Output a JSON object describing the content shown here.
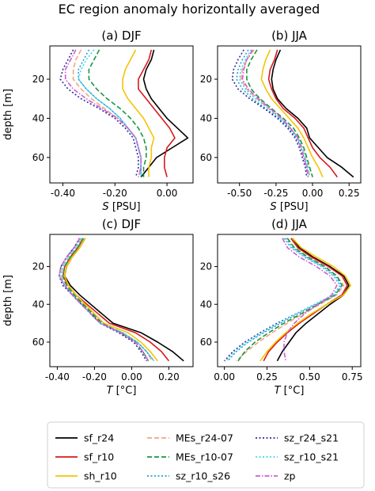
{
  "figure_title": "EC region anomaly horizontally averaged",
  "legend": {
    "entries": [
      {
        "label": "sf_r24",
        "color": "#000000",
        "dash": "solid"
      },
      {
        "label": "sf_r10",
        "color": "#d7191c",
        "dash": "solid"
      },
      {
        "label": "sh_r10",
        "color": "#f5c400",
        "dash": "solid"
      },
      {
        "label": "MEs_r24-07",
        "color": "#f4a582",
        "dash": "dashed"
      },
      {
        "label": "MEs_r10-07",
        "color": "#1a9641",
        "dash": "dashed"
      },
      {
        "label": "sz_r10_s26",
        "color": "#2b9bd6",
        "dash": "dotted"
      },
      {
        "label": "sz_r24_s21",
        "color": "#2c2c9c",
        "dash": "dotted"
      },
      {
        "label": "sz_r10_s21",
        "color": "#3fd9e6",
        "dash": "dotted"
      },
      {
        "label": "zp",
        "color": "#d05bd5",
        "dash": "dashdot"
      }
    ]
  },
  "chart_data": [
    {
      "id": "a",
      "type": "line",
      "title": "(a) DJF",
      "xlabel_italic": "S",
      "xlabel_unit": " [PSU]",
      "ylabel": "depth [m]",
      "xlim": [
        -0.45,
        0.1
      ],
      "ylim": [
        73,
        3
      ],
      "xticks": [
        -0.4,
        -0.2,
        0.0
      ],
      "xtick_labels": [
        "-0.40",
        "-0.20",
        "0.00"
      ],
      "yticks": [
        20,
        40,
        60
      ],
      "ytick_labels": [
        "20",
        "40",
        "60"
      ],
      "depth": [
        5,
        10,
        15,
        20,
        25,
        30,
        35,
        40,
        45,
        50,
        55,
        60,
        65,
        70
      ],
      "series": [
        {
          "name": "sf_r24",
          "values": [
            -0.05,
            -0.06,
            -0.08,
            -0.09,
            -0.08,
            -0.06,
            -0.03,
            0.0,
            0.04,
            0.08,
            0.02,
            -0.04,
            -0.07,
            -0.1
          ]
        },
        {
          "name": "sf_r10",
          "values": [
            -0.06,
            -0.07,
            -0.09,
            -0.11,
            -0.11,
            -0.08,
            -0.05,
            -0.02,
            0.01,
            0.03,
            0.0,
            -0.01,
            -0.01,
            0.0
          ]
        },
        {
          "name": "sh_r10",
          "values": [
            -0.12,
            -0.14,
            -0.16,
            -0.17,
            -0.17,
            -0.15,
            -0.12,
            -0.09,
            -0.07,
            -0.05,
            -0.06,
            -0.06,
            -0.07,
            -0.07
          ]
        },
        {
          "name": "MEs_r24-07",
          "values": [
            -0.33,
            -0.35,
            -0.36,
            -0.36,
            -0.33,
            -0.29,
            -0.24,
            -0.19,
            -0.15,
            -0.12,
            -0.11,
            -0.1,
            -0.1,
            -0.11
          ]
        },
        {
          "name": "MEs_r10-07",
          "values": [
            -0.26,
            -0.28,
            -0.3,
            -0.3,
            -0.27,
            -0.23,
            -0.18,
            -0.14,
            -0.11,
            -0.09,
            -0.08,
            -0.08,
            -0.09,
            -0.09
          ]
        },
        {
          "name": "sz_r10_s26",
          "values": [
            -0.3,
            -0.32,
            -0.34,
            -0.34,
            -0.31,
            -0.27,
            -0.22,
            -0.18,
            -0.15,
            -0.12,
            -0.11,
            -0.1,
            -0.1,
            -0.1
          ]
        },
        {
          "name": "sz_r24_s21",
          "values": [
            -0.36,
            -0.38,
            -0.4,
            -0.41,
            -0.38,
            -0.33,
            -0.26,
            -0.2,
            -0.16,
            -0.13,
            -0.12,
            -0.11,
            -0.11,
            -0.12
          ]
        },
        {
          "name": "sz_r10_s21",
          "values": [
            -0.28,
            -0.31,
            -0.33,
            -0.34,
            -0.31,
            -0.27,
            -0.22,
            -0.18,
            -0.15,
            -0.12,
            -0.11,
            -0.1,
            -0.1,
            -0.1
          ]
        },
        {
          "name": "zp",
          "values": [
            -0.35,
            -0.37,
            -0.39,
            -0.39,
            -0.36,
            -0.31,
            -0.25,
            -0.19,
            -0.15,
            -0.12,
            -0.11,
            -0.1,
            -0.1,
            -0.11
          ]
        }
      ]
    },
    {
      "id": "b",
      "type": "line",
      "title": "(b) JJA",
      "xlabel_italic": "S",
      "xlabel_unit": " [PSU]",
      "ylabel": "",
      "xlim": [
        -0.65,
        0.33
      ],
      "ylim": [
        73,
        3
      ],
      "xticks": [
        -0.5,
        -0.25,
        0.0,
        0.25
      ],
      "xtick_labels": [
        "-0.50",
        "-0.25",
        "0.00",
        "0.25"
      ],
      "yticks": [
        20,
        40,
        60
      ],
      "ytick_labels": [
        "20",
        "40",
        "60"
      ],
      "depth": [
        5,
        10,
        15,
        20,
        25,
        30,
        35,
        40,
        45,
        50,
        55,
        60,
        65,
        70
      ],
      "series": [
        {
          "name": "sf_r24",
          "values": [
            -0.22,
            -0.25,
            -0.27,
            -0.28,
            -0.27,
            -0.24,
            -0.18,
            -0.1,
            -0.04,
            -0.02,
            0.04,
            0.1,
            0.2,
            0.28
          ]
        },
        {
          "name": "sf_r10",
          "values": [
            -0.24,
            -0.26,
            -0.29,
            -0.3,
            -0.28,
            -0.25,
            -0.2,
            -0.12,
            -0.06,
            -0.03,
            0.0,
            0.05,
            0.12,
            0.17
          ]
        },
        {
          "name": "sh_r10",
          "values": [
            -0.29,
            -0.32,
            -0.34,
            -0.35,
            -0.32,
            -0.28,
            -0.22,
            -0.16,
            -0.1,
            -0.06,
            -0.03,
            0.0,
            0.04,
            0.07
          ]
        },
        {
          "name": "MEs_r24-07",
          "values": [
            -0.4,
            -0.45,
            -0.48,
            -0.49,
            -0.45,
            -0.38,
            -0.3,
            -0.22,
            -0.15,
            -0.1,
            -0.07,
            -0.05,
            -0.03,
            -0.02
          ]
        },
        {
          "name": "MEs_r10-07",
          "values": [
            -0.38,
            -0.42,
            -0.45,
            -0.45,
            -0.42,
            -0.36,
            -0.28,
            -0.2,
            -0.13,
            -0.09,
            -0.06,
            -0.04,
            -0.02,
            0.0
          ]
        },
        {
          "name": "sz_r10_s26",
          "values": [
            -0.44,
            -0.48,
            -0.51,
            -0.52,
            -0.48,
            -0.41,
            -0.32,
            -0.23,
            -0.16,
            -0.11,
            -0.08,
            -0.06,
            -0.04,
            -0.03
          ]
        },
        {
          "name": "sz_r24_s21",
          "values": [
            -0.47,
            -0.51,
            -0.54,
            -0.55,
            -0.51,
            -0.43,
            -0.33,
            -0.24,
            -0.17,
            -0.12,
            -0.09,
            -0.07,
            -0.05,
            -0.04
          ]
        },
        {
          "name": "sz_r10_s21",
          "values": [
            -0.42,
            -0.46,
            -0.49,
            -0.5,
            -0.46,
            -0.39,
            -0.3,
            -0.22,
            -0.15,
            -0.1,
            -0.07,
            -0.05,
            -0.03,
            -0.02
          ]
        },
        {
          "name": "zp",
          "values": [
            -0.41,
            -0.45,
            -0.47,
            -0.48,
            -0.44,
            -0.37,
            -0.29,
            -0.21,
            -0.15,
            -0.1,
            -0.08,
            -0.06,
            -0.04,
            -0.03
          ]
        }
      ]
    },
    {
      "id": "c",
      "type": "line",
      "title": "(c) DJF",
      "xlabel_italic": "T",
      "xlabel_unit": " [°C]",
      "ylabel": "depth [m]",
      "xlim": [
        -0.44,
        0.33
      ],
      "ylim": [
        73,
        3
      ],
      "xticks": [
        -0.4,
        -0.2,
        0.0,
        0.2
      ],
      "xtick_labels": [
        "-0.40",
        "-0.20",
        "0.00",
        "0.20"
      ],
      "yticks": [
        20,
        40,
        60
      ],
      "ytick_labels": [
        "20",
        "40",
        "60"
      ],
      "depth": [
        5,
        10,
        15,
        20,
        25,
        30,
        35,
        40,
        45,
        50,
        55,
        60,
        65,
        70
      ],
      "series": [
        {
          "name": "sf_r24",
          "values": [
            -0.25,
            -0.28,
            -0.32,
            -0.35,
            -0.36,
            -0.33,
            -0.28,
            -0.22,
            -0.16,
            -0.1,
            0.05,
            0.14,
            0.22,
            0.28
          ]
        },
        {
          "name": "sf_r10",
          "values": [
            -0.26,
            -0.29,
            -0.33,
            -0.36,
            -0.37,
            -0.34,
            -0.3,
            -0.24,
            -0.18,
            -0.12,
            0.02,
            0.1,
            0.16,
            0.2
          ]
        },
        {
          "name": "sh_r10",
          "values": [
            -0.25,
            -0.28,
            -0.32,
            -0.35,
            -0.36,
            -0.34,
            -0.3,
            -0.25,
            -0.2,
            -0.15,
            -0.02,
            0.05,
            0.1,
            0.14
          ]
        },
        {
          "name": "MEs_r24-07",
          "values": [
            -0.27,
            -0.3,
            -0.34,
            -0.37,
            -0.38,
            -0.35,
            -0.31,
            -0.26,
            -0.21,
            -0.16,
            -0.05,
            0.03,
            0.08,
            0.11
          ]
        },
        {
          "name": "MEs_r10-07",
          "values": [
            -0.26,
            -0.29,
            -0.33,
            -0.36,
            -0.37,
            -0.35,
            -0.31,
            -0.26,
            -0.21,
            -0.16,
            -0.06,
            0.02,
            0.06,
            0.09
          ]
        },
        {
          "name": "sz_r10_s26",
          "values": [
            -0.27,
            -0.31,
            -0.35,
            -0.38,
            -0.39,
            -0.36,
            -0.32,
            -0.27,
            -0.22,
            -0.17,
            -0.05,
            0.03,
            0.08,
            0.12
          ]
        },
        {
          "name": "sz_r24_s21",
          "values": [
            -0.28,
            -0.31,
            -0.35,
            -0.38,
            -0.39,
            -0.37,
            -0.32,
            -0.27,
            -0.22,
            -0.17,
            -0.07,
            0.01,
            0.05,
            0.08
          ]
        },
        {
          "name": "sz_r10_s21",
          "values": [
            -0.27,
            -0.3,
            -0.34,
            -0.37,
            -0.38,
            -0.36,
            -0.32,
            -0.27,
            -0.22,
            -0.17,
            -0.05,
            0.03,
            0.08,
            0.12
          ]
        },
        {
          "name": "zp",
          "values": [
            -0.28,
            -0.31,
            -0.35,
            -0.38,
            -0.39,
            -0.36,
            -0.32,
            -0.27,
            -0.22,
            -0.17,
            -0.06,
            0.02,
            0.06,
            0.09
          ]
        }
      ]
    },
    {
      "id": "d",
      "type": "line",
      "title": "(d) JJA",
      "xlabel_italic": "T",
      "xlabel_unit": " [°C]",
      "ylabel": "",
      "xlim": [
        -0.04,
        0.8
      ],
      "ylim": [
        73,
        3
      ],
      "xticks": [
        0.0,
        0.25,
        0.5,
        0.75
      ],
      "xtick_labels": [
        "0.00",
        "0.25",
        "0.50",
        "0.75"
      ],
      "yticks": [
        20,
        40,
        60
      ],
      "ytick_labels": [
        "20",
        "40",
        "60"
      ],
      "depth": [
        5,
        10,
        15,
        20,
        25,
        30,
        35,
        40,
        45,
        50,
        55,
        60,
        65,
        70
      ],
      "series": [
        {
          "name": "sf_r24",
          "values": [
            0.4,
            0.44,
            0.52,
            0.62,
            0.7,
            0.73,
            0.7,
            0.62,
            0.55,
            0.48,
            0.42,
            0.38,
            0.34,
            0.31
          ]
        },
        {
          "name": "sf_r10",
          "values": [
            0.39,
            0.43,
            0.51,
            0.61,
            0.69,
            0.72,
            0.69,
            0.6,
            0.52,
            0.44,
            0.37,
            0.31,
            0.26,
            0.23
          ]
        },
        {
          "name": "sh_r10",
          "values": [
            0.4,
            0.45,
            0.54,
            0.64,
            0.71,
            0.74,
            0.7,
            0.6,
            0.51,
            0.43,
            0.36,
            0.3,
            0.25,
            0.21
          ]
        },
        {
          "name": "MEs_r24-07",
          "values": [
            0.37,
            0.41,
            0.49,
            0.59,
            0.66,
            0.7,
            0.66,
            0.56,
            0.46,
            0.37,
            0.28,
            0.2,
            0.13,
            0.07
          ]
        },
        {
          "name": "MEs_r10-07",
          "values": [
            0.37,
            0.41,
            0.49,
            0.59,
            0.66,
            0.69,
            0.65,
            0.55,
            0.45,
            0.35,
            0.26,
            0.18,
            0.12,
            0.08
          ]
        },
        {
          "name": "sz_r10_s26",
          "values": [
            0.36,
            0.4,
            0.48,
            0.58,
            0.65,
            0.69,
            0.65,
            0.54,
            0.43,
            0.33,
            0.23,
            0.14,
            0.07,
            0.02
          ]
        },
        {
          "name": "sz_r24_s21",
          "values": [
            0.35,
            0.39,
            0.47,
            0.57,
            0.64,
            0.68,
            0.64,
            0.53,
            0.42,
            0.31,
            0.21,
            0.12,
            0.05,
            0.0
          ]
        },
        {
          "name": "sz_r10_s21",
          "values": [
            0.35,
            0.39,
            0.47,
            0.57,
            0.64,
            0.68,
            0.64,
            0.53,
            0.42,
            0.32,
            0.22,
            0.13,
            0.06,
            0.01
          ]
        },
        {
          "name": "zp",
          "values": [
            0.34,
            0.37,
            0.44,
            0.54,
            0.62,
            0.66,
            0.63,
            0.55,
            0.47,
            0.41,
            0.37,
            0.35,
            0.35,
            0.36
          ]
        }
      ]
    }
  ]
}
